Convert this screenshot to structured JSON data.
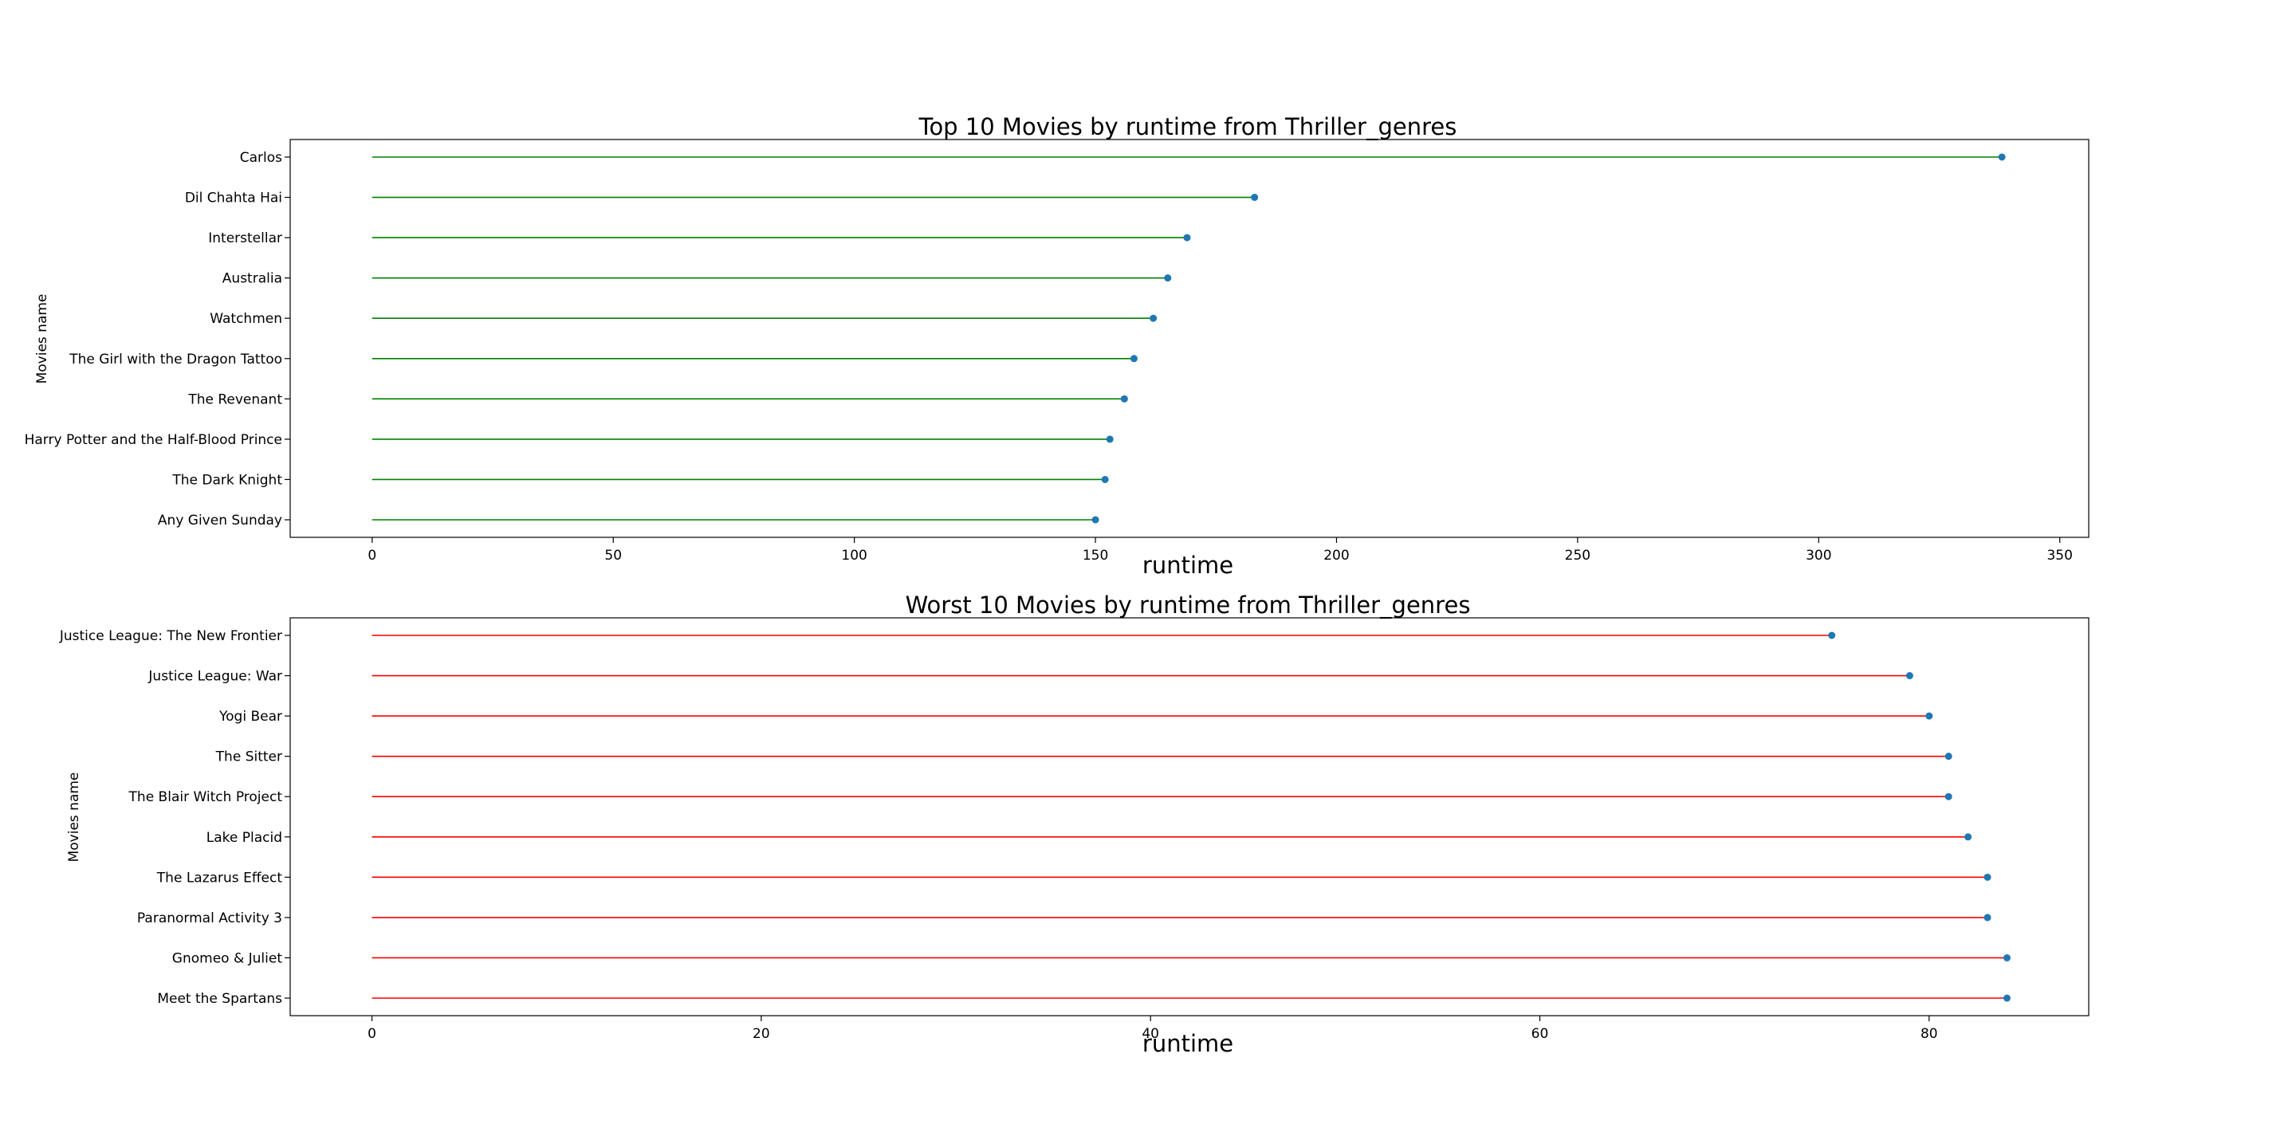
{
  "chart_data": [
    {
      "type": "lollipop",
      "title": "Top 10 Movies by runtime from Thriller_genres",
      "xlabel": "runtime",
      "ylabel": "Movies name",
      "xlim": [
        -17,
        356
      ],
      "xticks": [
        0,
        50,
        100,
        150,
        200,
        250,
        300,
        350
      ],
      "stem_color": "#008000",
      "marker_color": "#1f77b4",
      "categories": [
        "Carlos",
        "Dil Chahta Hai",
        "Interstellar",
        "Australia",
        "Watchmen",
        "The Girl with the Dragon Tattoo",
        "The Revenant",
        "Harry Potter and the Half-Blood Prince",
        "The Dark Knight",
        "Any Given Sunday"
      ],
      "values": [
        338,
        183,
        169,
        165,
        162,
        158,
        156,
        153,
        152,
        150
      ]
    },
    {
      "type": "lollipop",
      "title": "Worst 10 Movies by runtime from Thriller_genres",
      "xlabel": "runtime",
      "ylabel": "Movies name",
      "xlim": [
        -4.2,
        88.2
      ],
      "xticks": [
        0,
        20,
        40,
        60,
        80
      ],
      "stem_color": "#ff0000",
      "marker_color": "#1f77b4",
      "categories": [
        "Justice League: The New Frontier",
        "Justice League: War",
        "Yogi Bear",
        "The Sitter",
        "The Blair Witch Project",
        "Lake Placid",
        "The Lazarus Effect",
        "Paranormal Activity 3",
        "Gnomeo & Juliet",
        "Meet the Spartans"
      ],
      "values": [
        75,
        79,
        80,
        81,
        81,
        82,
        83,
        83,
        84,
        84
      ]
    }
  ]
}
